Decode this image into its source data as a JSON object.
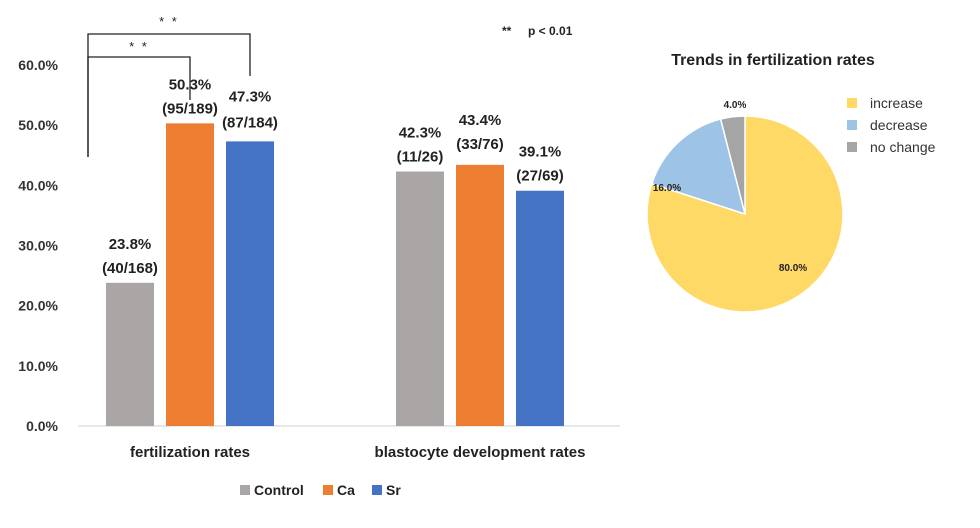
{
  "chart_data": [
    {
      "type": "bar",
      "categories": [
        "fertilization rates",
        "blastocyte development rates"
      ],
      "series": [
        {
          "name": "Control",
          "color": "#a9a6a5",
          "values": [
            23.8,
            42.3
          ],
          "ratios": [
            "(40/168)",
            "(11/26)"
          ]
        },
        {
          "name": "Ca",
          "color": "#ed7d31",
          "values": [
            50.3,
            43.4
          ],
          "ratios": [
            "(95/189)",
            "(33/76)"
          ]
        },
        {
          "name": "Sr",
          "color": "#4472c4",
          "values": [
            47.3,
            39.1
          ],
          "ratios": [
            "(87/184)",
            "(27/69)"
          ]
        }
      ],
      "value_labels": [
        [
          "23.8%",
          "42.3%"
        ],
        [
          "50.3%",
          "43.4%"
        ],
        [
          "47.3%",
          "39.1%"
        ]
      ],
      "ylim": [
        0,
        60
      ],
      "yticks": [
        "0.0%",
        "10.0%",
        "20.0%",
        "30.0%",
        "40.0%",
        "50.0%",
        "60.0%"
      ],
      "legend": "bottom",
      "grid": false,
      "significance": {
        "marker": "* *",
        "note_marker": "**",
        "note_text": "p < 0.01",
        "brackets": [
          {
            "from_series": "Control",
            "to_series": "Ca",
            "category": "fertilization rates"
          },
          {
            "from_series": "Control",
            "to_series": "Sr",
            "category": "fertilization rates"
          }
        ]
      }
    },
    {
      "type": "pie",
      "title": "Trends in fertilization rates",
      "slices": [
        {
          "name": "increase",
          "value": 80.0,
          "label": "80.0%",
          "color": "#ffd966"
        },
        {
          "name": "decrease",
          "value": 16.0,
          "label": "16.0%",
          "color": "#9dc3e6"
        },
        {
          "name": "no change",
          "value": 4.0,
          "label": "4.0%",
          "color": "#a5a5a5"
        }
      ],
      "legend": "right"
    }
  ]
}
